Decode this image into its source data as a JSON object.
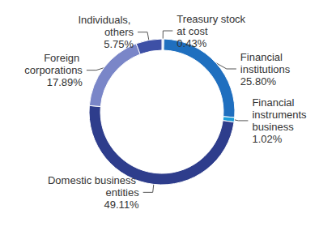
{
  "chart_data": {
    "type": "pie",
    "categories": [
      "Treasury stock at cost",
      "Financial institutions",
      "Financial instruments business",
      "Domestic business entities",
      "Foreign corporations",
      "Individuals, others"
    ],
    "values": [
      0.43,
      25.8,
      1.02,
      49.11,
      17.89,
      5.75
    ],
    "value_labels": [
      "0.43%",
      "25.80%",
      "1.02%",
      "49.11%",
      "17.89%",
      "5.75%"
    ],
    "colors": [
      "#c8d5ec",
      "#1f6fbf",
      "#1b9dd9",
      "#2e3d8c",
      "#7a86c8",
      "#3e50a6"
    ],
    "data_labels": true
  }
}
